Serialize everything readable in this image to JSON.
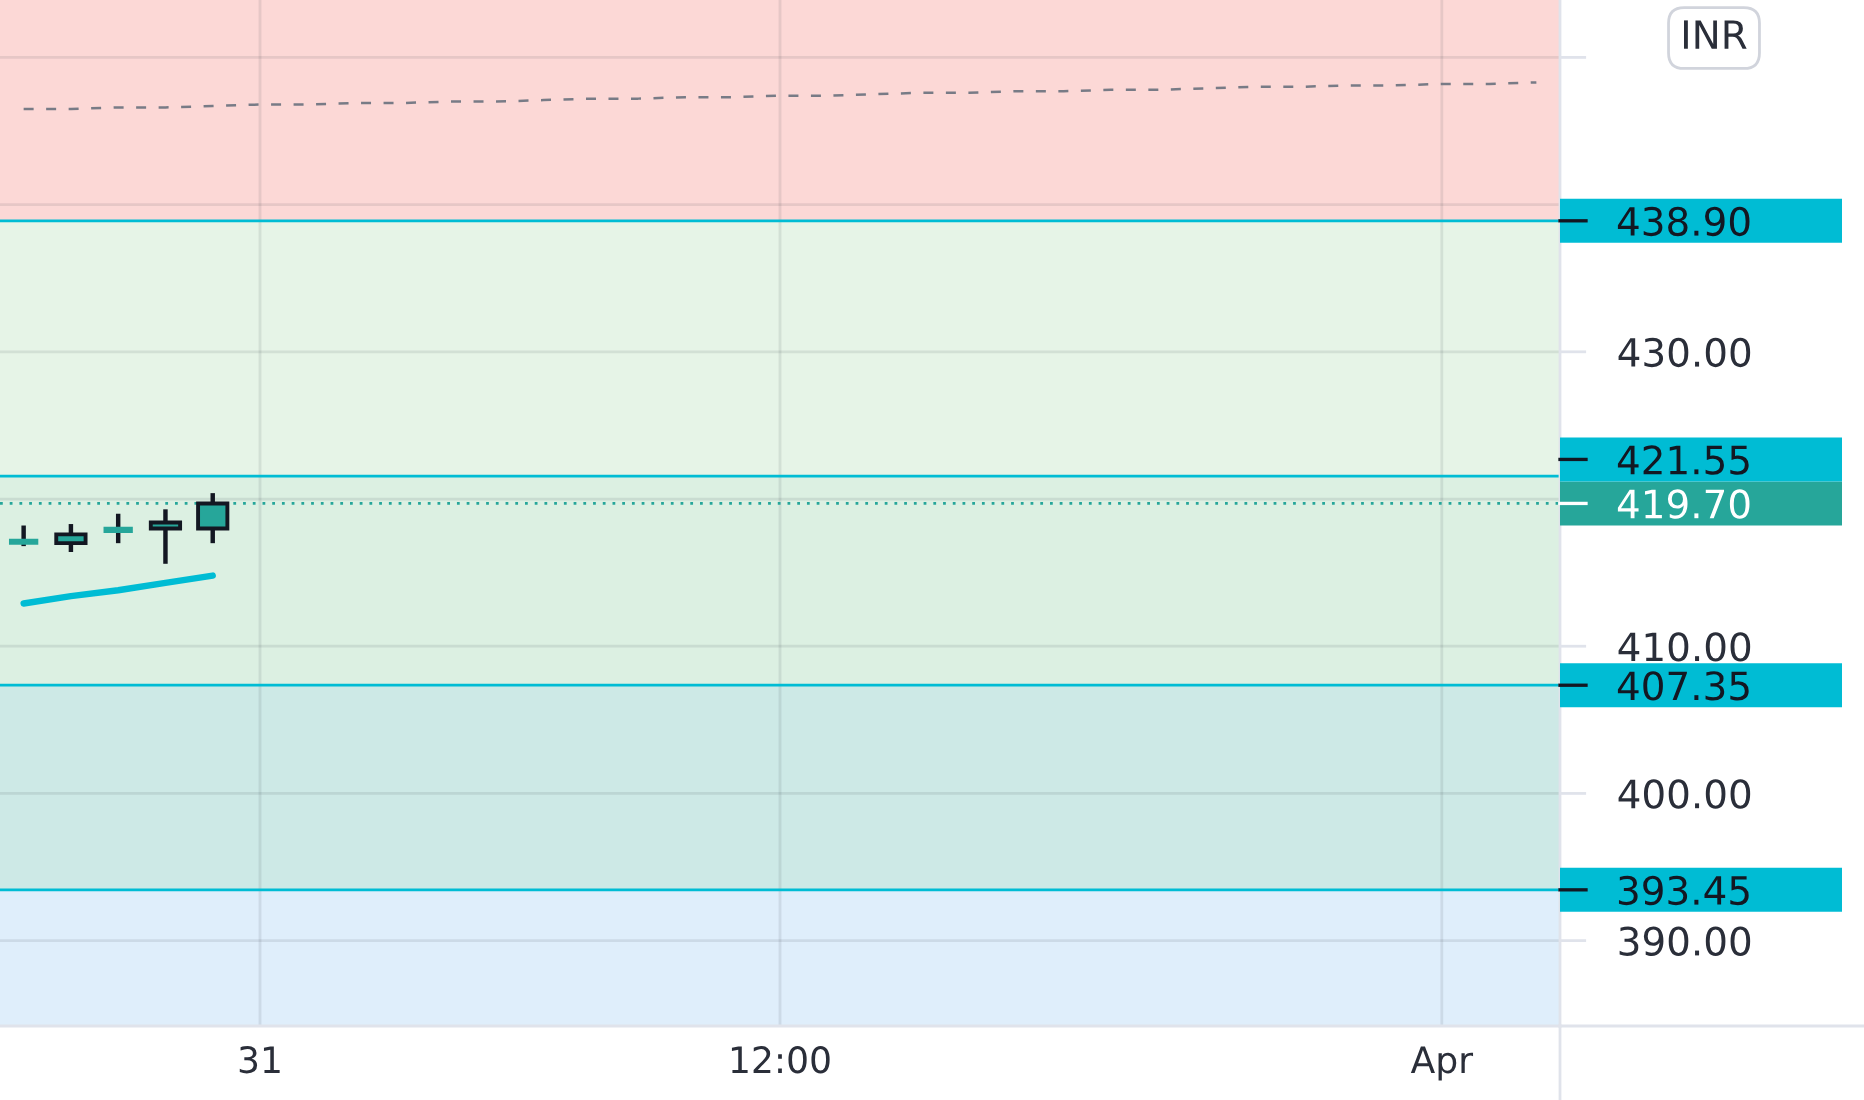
{
  "chart_data": {
    "type": "candlestick",
    "categories": [
      null,
      null,
      null,
      null,
      null,
      "31",
      null,
      null,
      null,
      null,
      null,
      null,
      null,
      null,
      null,
      null,
      "12:00",
      null,
      null,
      null,
      null,
      null,
      null,
      null,
      null,
      null,
      null,
      null,
      null,
      null,
      "Apr",
      null,
      null
    ],
    "series": [
      {
        "color": "#26a69a",
        "ohlc": [
          [
            417.1,
            418.2,
            416.8,
            417.1
          ],
          [
            417.0,
            418.3,
            416.4,
            417.6
          ],
          [
            417.9,
            419.0,
            417.0,
            417.9
          ],
          [
            418.0,
            419.3,
            415.6,
            418.4
          ],
          [
            418.0,
            420.4,
            417.0,
            419.7
          ],
          null,
          null,
          null,
          null,
          null,
          null,
          null,
          null,
          null,
          null,
          null,
          null,
          null,
          null,
          null,
          null,
          null,
          null,
          null,
          null,
          null,
          null,
          null,
          null,
          null,
          null,
          null,
          null
        ]
      },
      {
        "type": "line",
        "color": "#00bcd4",
        "values": [
          412.9,
          413.4,
          413.8,
          414.3,
          414.8,
          null,
          null,
          null,
          null,
          null,
          null,
          null,
          null,
          null,
          null,
          null,
          null,
          null,
          null,
          null,
          null,
          null,
          null,
          null,
          null,
          null,
          null,
          null,
          null,
          null,
          null,
          null,
          null
        ]
      },
      {
        "type": "line",
        "color": "#787b86",
        "line_style": "dashed",
        "values": [
          446.5,
          446.5,
          446.6,
          446.6,
          446.7,
          446.8,
          446.8,
          446.9,
          446.9,
          447.0,
          447.0,
          447.1,
          447.2,
          447.2,
          447.3,
          447.3,
          447.4,
          447.4,
          447.5,
          447.6,
          447.6,
          447.7,
          447.7,
          447.8,
          447.8,
          447.9,
          448.0,
          448.0,
          448.1,
          448.1,
          448.2,
          448.2,
          448.3
        ]
      }
    ],
    "ylim": [
      384.2,
      453.9
    ],
    "yticks": [
      {
        "value": 390,
        "label": "390.00"
      },
      {
        "value": 400,
        "label": "400.00"
      },
      {
        "value": 410,
        "label": "410.00"
      },
      {
        "value": 420,
        "label": null
      },
      {
        "value": 430,
        "label": "430.00"
      },
      {
        "value": 440,
        "label": null
      },
      {
        "value": 450,
        "label": null
      }
    ],
    "grid": true,
    "bands": [
      {
        "axis": "y",
        "from": 438.9,
        "to": 453.9,
        "color": "#fcd8d6"
      },
      {
        "axis": "y",
        "from": 421.55,
        "to": 438.9,
        "color": "#e6f4e7"
      },
      {
        "axis": "y",
        "from": 407.35,
        "to": 421.55,
        "color": "#dcf0e2"
      },
      {
        "axis": "y",
        "from": 393.45,
        "to": 407.35,
        "color": "#cde9e6"
      },
      {
        "axis": "y",
        "from": 384.2,
        "to": 393.45,
        "color": "#dfeefb"
      }
    ],
    "ref_lines": [
      {
        "axis": "y",
        "value": 438.9,
        "label": "438.90",
        "color": "#00bcd4"
      },
      {
        "axis": "y",
        "value": 421.55,
        "label": "421.55",
        "color": "#00bcd4"
      },
      {
        "axis": "y",
        "value": 419.7,
        "label": "419.70",
        "color": "#26a69a",
        "line_style": "dotted"
      },
      {
        "axis": "y",
        "value": 407.35,
        "label": "407.35",
        "color": "#00bcd4"
      },
      {
        "axis": "y",
        "value": 393.45,
        "label": "393.45",
        "color": "#00bcd4"
      }
    ],
    "annotations": [
      "INR"
    ]
  }
}
